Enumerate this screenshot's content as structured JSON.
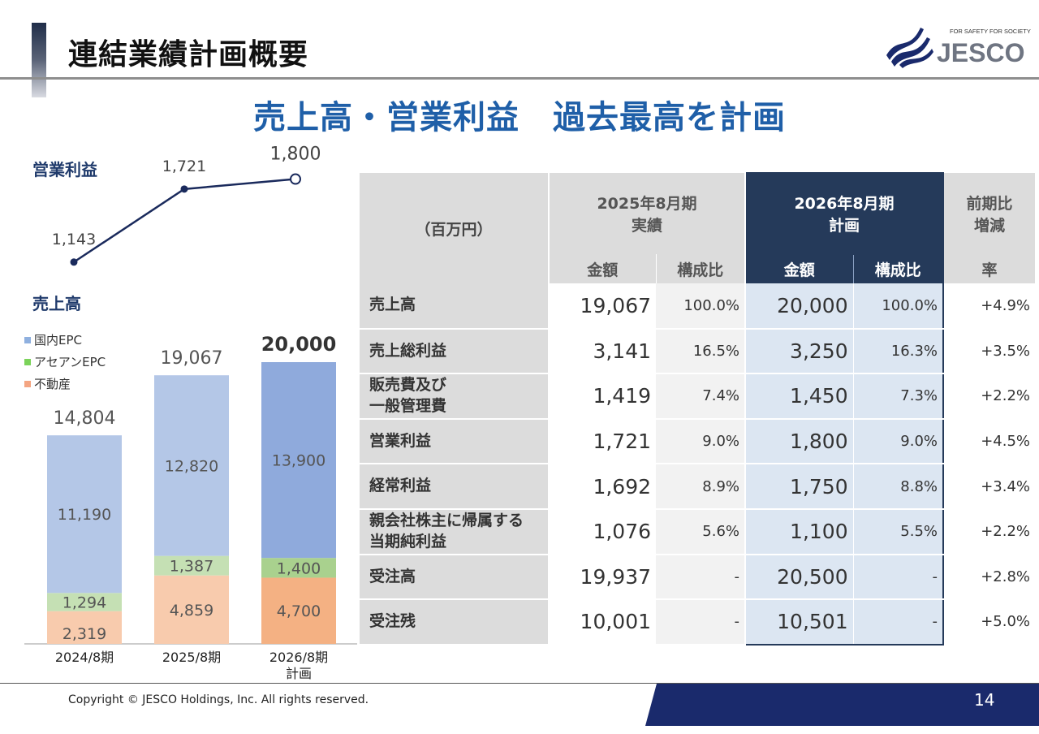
{
  "header": {
    "title": "連結業績計画概要",
    "headline": "売上高・営業利益　過去最高を計画",
    "logo_tagline": "FOR SAFETY FOR SOCIETY",
    "logo_name": "JESCO"
  },
  "operating_profit_section": {
    "label": "営業利益"
  },
  "sales_section": {
    "label": "売上高"
  },
  "legend": [
    {
      "label": "国内EPC",
      "color": "#b4c7e7"
    },
    {
      "label": "アセアンEPC",
      "color": "#a9d18e"
    },
    {
      "label": "不動産",
      "color": "#f8cbad"
    }
  ],
  "chart_data": [
    {
      "type": "line",
      "title": "営業利益",
      "categories": [
        "2024/8期",
        "2025/8期",
        "2026/8期 計画"
      ],
      "values": [
        1143,
        1721,
        1800
      ],
      "value_labels": [
        "1,143",
        "1,721",
        "1,800"
      ],
      "ylim": [
        1000,
        1900
      ]
    },
    {
      "type": "bar",
      "stacked": true,
      "title": "売上高",
      "categories": [
        "2024/8期",
        "2025/8期",
        "2026/8期"
      ],
      "category_sublabels": [
        "",
        "",
        "計画"
      ],
      "series": [
        {
          "name": "不動産",
          "values": [
            2319,
            4859,
            4700
          ],
          "labels": [
            "2,319",
            "4,859",
            "4,700"
          ]
        },
        {
          "name": "アセアンEPC",
          "values": [
            1294,
            1387,
            1400
          ],
          "labels": [
            "1,294",
            "1,387",
            "1,400"
          ]
        },
        {
          "name": "国内EPC",
          "values": [
            11190,
            12820,
            13900
          ],
          "labels": [
            "11,190",
            "12,820",
            "13,900"
          ]
        }
      ],
      "totals": [
        14804,
        19067,
        20000
      ],
      "total_labels": [
        "14,804",
        "19,067",
        "20,000"
      ],
      "ylim": [
        0,
        20000
      ]
    }
  ],
  "table": {
    "unit": "（百万円）",
    "col_2025": [
      "2025年8月期",
      "実績"
    ],
    "col_2026": [
      "2026年8月期",
      "計画"
    ],
    "col_diff": [
      "前期比",
      "増減"
    ],
    "sub_amount": "金額",
    "sub_ratio": "構成比",
    "sub_rate": "率",
    "rows": [
      {
        "label": [
          "売上高"
        ],
        "a25": "19,067",
        "r25": "100.0%",
        "a26": "20,000",
        "r26": "100.0%",
        "rate": "+4.9%"
      },
      {
        "label": [
          "売上総利益"
        ],
        "a25": "3,141",
        "r25": "16.5%",
        "a26": "3,250",
        "r26": "16.3%",
        "rate": "+3.5%"
      },
      {
        "label": [
          "販売費及び",
          "一般管理費"
        ],
        "a25": "1,419",
        "r25": "7.4%",
        "a26": "1,450",
        "r26": "7.3%",
        "rate": "+2.2%"
      },
      {
        "label": [
          "営業利益"
        ],
        "a25": "1,721",
        "r25": "9.0%",
        "a26": "1,800",
        "r26": "9.0%",
        "rate": "+4.5%"
      },
      {
        "label": [
          "経常利益"
        ],
        "a25": "1,692",
        "r25": "8.9%",
        "a26": "1,750",
        "r26": "8.8%",
        "rate": "+3.4%"
      },
      {
        "label": [
          "親会社株主に帰属する",
          "当期純利益"
        ],
        "a25": "1,076",
        "r25": "5.6%",
        "a26": "1,100",
        "r26": "5.5%",
        "rate": "+2.2%"
      },
      {
        "label": [
          "受注高"
        ],
        "a25": "19,937",
        "r25": "-",
        "a26": "20,500",
        "r26": "-",
        "rate": "+2.8%"
      },
      {
        "label": [
          "受注残"
        ],
        "a25": "10,001",
        "r25": "-",
        "a26": "10,501",
        "r26": "-",
        "rate": "+5.0%"
      }
    ]
  },
  "footer": {
    "copyright": "Copyright  ©  JESCO Holdings, Inc.  All rights reserved.",
    "page": "14"
  }
}
